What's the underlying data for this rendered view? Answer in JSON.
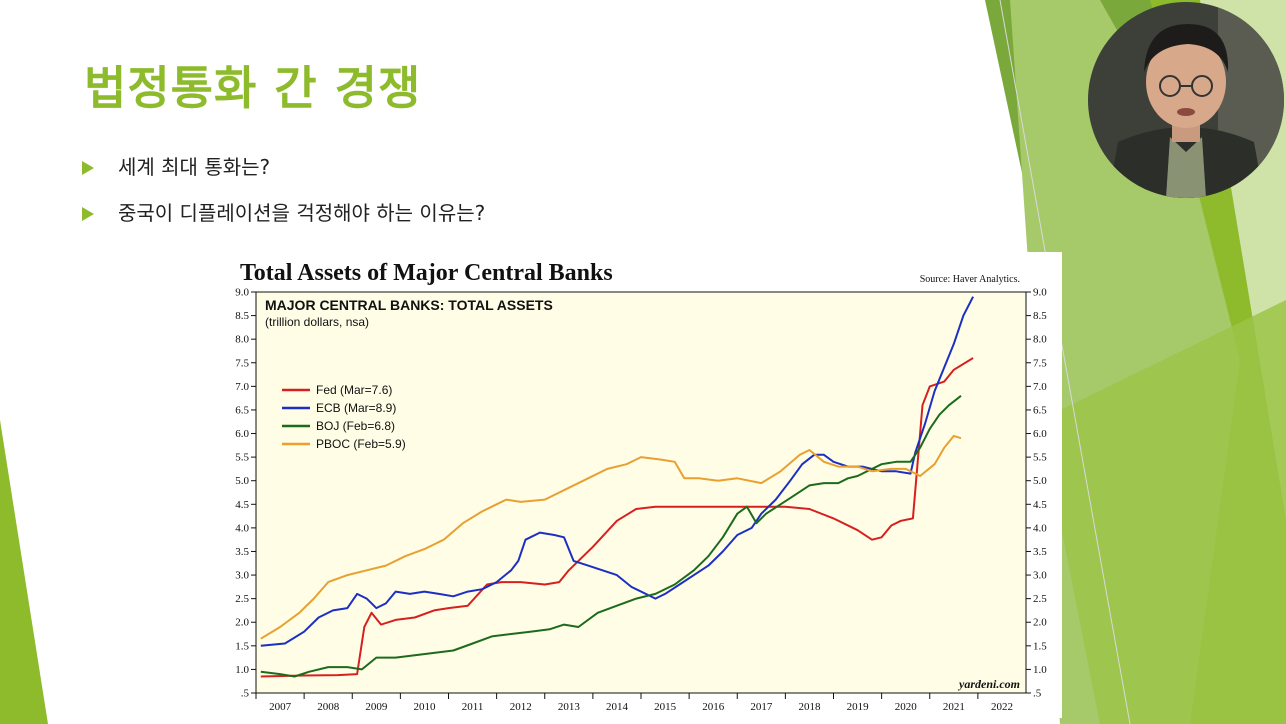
{
  "slide": {
    "title": "법정통화 간 경쟁",
    "bullets": [
      "세계 최대 통화는?",
      "중국이 디플레이션을 걱정해야 하는 이유는?"
    ]
  },
  "chart_data": {
    "type": "line",
    "title": "Total Assets of Major Central Banks",
    "source": "Source: Haver Analytics.",
    "inner_title": "MAJOR CENTRAL BANKS: TOTAL ASSETS",
    "inner_subtitle": "(trillion dollars, nsa)",
    "watermark": "yardeni.com",
    "ylim": [
      0.5,
      9.0
    ],
    "xlim": [
      2006.5,
      2022.5
    ],
    "y_ticks": [
      "9.0",
      "8.5",
      "8.0",
      "7.5",
      "7.0",
      "6.5",
      "6.0",
      "5.5",
      "5.0",
      "4.5",
      "4.0",
      "3.5",
      "3.0",
      "2.5",
      "2.0",
      "1.5",
      "1.0",
      ".5"
    ],
    "x_ticks": [
      "2007",
      "2008",
      "2009",
      "2010",
      "2011",
      "2012",
      "2013",
      "2014",
      "2015",
      "2016",
      "2017",
      "2018",
      "2019",
      "2020",
      "2021",
      "2022"
    ],
    "legend_position": "upper-left",
    "series": [
      {
        "name": "Fed (Mar=7.6)",
        "color": "#d62020",
        "points": [
          [
            2006.6,
            0.85
          ],
          [
            2007.5,
            0.87
          ],
          [
            2008.2,
            0.88
          ],
          [
            2008.6,
            0.9
          ],
          [
            2008.75,
            1.9
          ],
          [
            2008.9,
            2.2
          ],
          [
            2009.1,
            1.95
          ],
          [
            2009.4,
            2.05
          ],
          [
            2009.8,
            2.1
          ],
          [
            2010.2,
            2.25
          ],
          [
            2010.5,
            2.3
          ],
          [
            2010.9,
            2.35
          ],
          [
            2011.3,
            2.8
          ],
          [
            2011.6,
            2.85
          ],
          [
            2012.0,
            2.85
          ],
          [
            2012.5,
            2.8
          ],
          [
            2012.8,
            2.85
          ],
          [
            2013.0,
            3.1
          ],
          [
            2013.5,
            3.6
          ],
          [
            2014.0,
            4.15
          ],
          [
            2014.4,
            4.4
          ],
          [
            2014.8,
            4.45
          ],
          [
            2015.5,
            4.45
          ],
          [
            2016.5,
            4.45
          ],
          [
            2017.5,
            4.45
          ],
          [
            2018.0,
            4.4
          ],
          [
            2018.5,
            4.2
          ],
          [
            2019.0,
            3.95
          ],
          [
            2019.3,
            3.75
          ],
          [
            2019.5,
            3.8
          ],
          [
            2019.7,
            4.05
          ],
          [
            2019.9,
            4.15
          ],
          [
            2020.15,
            4.2
          ],
          [
            2020.25,
            5.4
          ],
          [
            2020.35,
            6.6
          ],
          [
            2020.5,
            7.0
          ],
          [
            2020.8,
            7.1
          ],
          [
            2021.0,
            7.35
          ],
          [
            2021.4,
            7.6
          ]
        ]
      },
      {
        "name": "ECB (Mar=8.9)",
        "color": "#1c2fc4",
        "points": [
          [
            2006.6,
            1.5
          ],
          [
            2007.1,
            1.55
          ],
          [
            2007.5,
            1.8
          ],
          [
            2007.8,
            2.1
          ],
          [
            2008.1,
            2.25
          ],
          [
            2008.4,
            2.3
          ],
          [
            2008.6,
            2.6
          ],
          [
            2008.8,
            2.5
          ],
          [
            2009.0,
            2.3
          ],
          [
            2009.2,
            2.4
          ],
          [
            2009.4,
            2.65
          ],
          [
            2009.7,
            2.6
          ],
          [
            2010.0,
            2.65
          ],
          [
            2010.3,
            2.6
          ],
          [
            2010.6,
            2.55
          ],
          [
            2010.9,
            2.65
          ],
          [
            2011.2,
            2.7
          ],
          [
            2011.5,
            2.85
          ],
          [
            2011.8,
            3.1
          ],
          [
            2011.95,
            3.3
          ],
          [
            2012.1,
            3.75
          ],
          [
            2012.4,
            3.9
          ],
          [
            2012.7,
            3.85
          ],
          [
            2012.9,
            3.8
          ],
          [
            2013.1,
            3.3
          ],
          [
            2013.4,
            3.2
          ],
          [
            2013.7,
            3.1
          ],
          [
            2014.0,
            3.0
          ],
          [
            2014.3,
            2.75
          ],
          [
            2014.6,
            2.6
          ],
          [
            2014.8,
            2.5
          ],
          [
            2015.0,
            2.6
          ],
          [
            2015.3,
            2.8
          ],
          [
            2015.6,
            3.0
          ],
          [
            2015.9,
            3.2
          ],
          [
            2016.2,
            3.5
          ],
          [
            2016.5,
            3.85
          ],
          [
            2016.8,
            4.0
          ],
          [
            2017.0,
            4.3
          ],
          [
            2017.3,
            4.6
          ],
          [
            2017.6,
            5.0
          ],
          [
            2017.85,
            5.35
          ],
          [
            2018.1,
            5.55
          ],
          [
            2018.3,
            5.55
          ],
          [
            2018.5,
            5.4
          ],
          [
            2018.8,
            5.3
          ],
          [
            2019.1,
            5.3
          ],
          [
            2019.5,
            5.2
          ],
          [
            2019.8,
            5.2
          ],
          [
            2020.1,
            5.15
          ],
          [
            2020.2,
            5.6
          ],
          [
            2020.4,
            6.2
          ],
          [
            2020.6,
            6.9
          ],
          [
            2020.8,
            7.4
          ],
          [
            2021.0,
            7.9
          ],
          [
            2021.2,
            8.5
          ],
          [
            2021.4,
            8.9
          ]
        ]
      },
      {
        "name": "BOJ (Feb=6.8)",
        "color": "#1c6b1c",
        "points": [
          [
            2006.6,
            0.95
          ],
          [
            2007.0,
            0.9
          ],
          [
            2007.3,
            0.85
          ],
          [
            2007.6,
            0.95
          ],
          [
            2008.0,
            1.05
          ],
          [
            2008.4,
            1.05
          ],
          [
            2008.7,
            1.0
          ],
          [
            2009.0,
            1.25
          ],
          [
            2009.4,
            1.25
          ],
          [
            2009.8,
            1.3
          ],
          [
            2010.2,
            1.35
          ],
          [
            2010.6,
            1.4
          ],
          [
            2011.0,
            1.55
          ],
          [
            2011.4,
            1.7
          ],
          [
            2011.8,
            1.75
          ],
          [
            2012.2,
            1.8
          ],
          [
            2012.6,
            1.85
          ],
          [
            2012.9,
            1.95
          ],
          [
            2013.2,
            1.9
          ],
          [
            2013.6,
            2.2
          ],
          [
            2014.0,
            2.35
          ],
          [
            2014.4,
            2.5
          ],
          [
            2014.8,
            2.6
          ],
          [
            2015.2,
            2.8
          ],
          [
            2015.6,
            3.1
          ],
          [
            2015.9,
            3.4
          ],
          [
            2016.2,
            3.8
          ],
          [
            2016.5,
            4.3
          ],
          [
            2016.7,
            4.45
          ],
          [
            2016.9,
            4.1
          ],
          [
            2017.1,
            4.3
          ],
          [
            2017.4,
            4.5
          ],
          [
            2017.7,
            4.7
          ],
          [
            2018.0,
            4.9
          ],
          [
            2018.3,
            4.95
          ],
          [
            2018.6,
            4.95
          ],
          [
            2018.8,
            5.05
          ],
          [
            2019.0,
            5.1
          ],
          [
            2019.3,
            5.25
          ],
          [
            2019.5,
            5.35
          ],
          [
            2019.8,
            5.4
          ],
          [
            2020.1,
            5.4
          ],
          [
            2020.3,
            5.7
          ],
          [
            2020.5,
            6.1
          ],
          [
            2020.7,
            6.4
          ],
          [
            2020.9,
            6.6
          ],
          [
            2021.15,
            6.8
          ]
        ]
      },
      {
        "name": "PBOC (Feb=5.9)",
        "color": "#e8a030",
        "points": [
          [
            2006.6,
            1.65
          ],
          [
            2007.0,
            1.9
          ],
          [
            2007.4,
            2.2
          ],
          [
            2007.7,
            2.5
          ],
          [
            2008.0,
            2.85
          ],
          [
            2008.4,
            3.0
          ],
          [
            2008.8,
            3.1
          ],
          [
            2009.2,
            3.2
          ],
          [
            2009.6,
            3.4
          ],
          [
            2010.0,
            3.55
          ],
          [
            2010.4,
            3.75
          ],
          [
            2010.8,
            4.1
          ],
          [
            2011.2,
            4.35
          ],
          [
            2011.5,
            4.5
          ],
          [
            2011.7,
            4.6
          ],
          [
            2012.0,
            4.55
          ],
          [
            2012.5,
            4.6
          ],
          [
            2013.0,
            4.85
          ],
          [
            2013.4,
            5.05
          ],
          [
            2013.8,
            5.25
          ],
          [
            2014.2,
            5.35
          ],
          [
            2014.5,
            5.5
          ],
          [
            2014.9,
            5.45
          ],
          [
            2015.2,
            5.4
          ],
          [
            2015.4,
            5.05
          ],
          [
            2015.7,
            5.05
          ],
          [
            2016.1,
            5.0
          ],
          [
            2016.5,
            5.05
          ],
          [
            2017.0,
            4.95
          ],
          [
            2017.4,
            5.2
          ],
          [
            2017.8,
            5.55
          ],
          [
            2018.0,
            5.65
          ],
          [
            2018.3,
            5.4
          ],
          [
            2018.6,
            5.3
          ],
          [
            2019.0,
            5.3
          ],
          [
            2019.3,
            5.2
          ],
          [
            2019.7,
            5.25
          ],
          [
            2020.0,
            5.25
          ],
          [
            2020.3,
            5.1
          ],
          [
            2020.6,
            5.35
          ],
          [
            2020.8,
            5.7
          ],
          [
            2021.0,
            5.95
          ],
          [
            2021.15,
            5.9
          ]
        ]
      }
    ]
  }
}
